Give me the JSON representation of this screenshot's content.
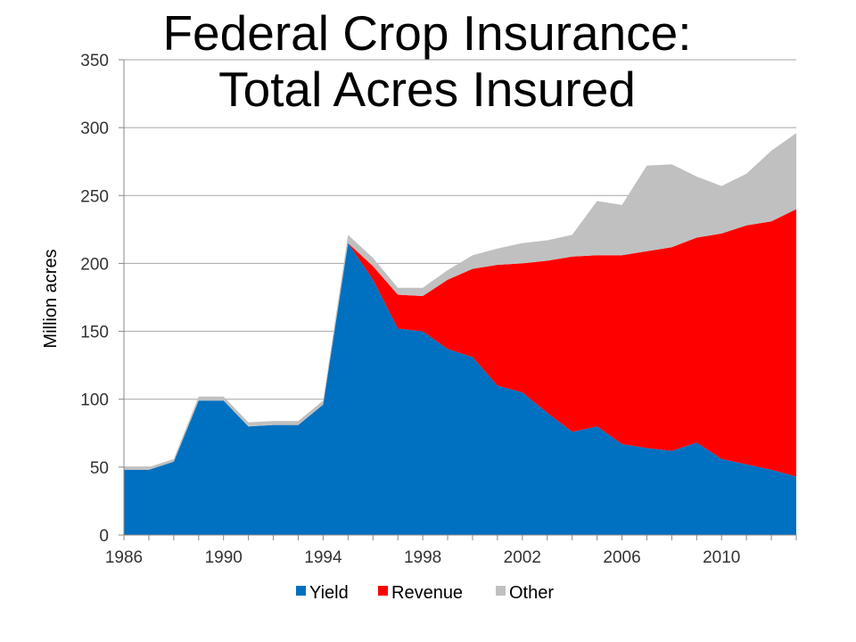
{
  "chart_data": {
    "type": "area",
    "stacked": true,
    "title": "Federal Crop Insurance:",
    "subtitle": "Total Acres Insured",
    "ylabel": "Million acres",
    "xlabel": "",
    "ylim": [
      0,
      350
    ],
    "yticks": [
      0,
      50,
      100,
      150,
      200,
      250,
      300,
      350
    ],
    "xlim": [
      1986,
      2013
    ],
    "xticks": [
      1986,
      1990,
      1994,
      1998,
      2002,
      2006,
      2010
    ],
    "grid": true,
    "legend_position": "bottom",
    "x": [
      1986,
      1987,
      1988,
      1989,
      1990,
      1991,
      1992,
      1993,
      1994,
      1995,
      1996,
      1997,
      1998,
      1999,
      2000,
      2001,
      2002,
      2003,
      2004,
      2005,
      2006,
      2007,
      2008,
      2009,
      2010,
      2011,
      2012,
      2013
    ],
    "series": [
      {
        "name": "Yield",
        "color": "#0070c0",
        "values": [
          48,
          48,
          54,
          99,
          99,
          80,
          81,
          81,
          96,
          215,
          188,
          152,
          150,
          137,
          131,
          110,
          105,
          90,
          76,
          80,
          67,
          64,
          62,
          68,
          56,
          52,
          48,
          43
        ]
      },
      {
        "name": "Revenue",
        "color": "#ff0000",
        "values": [
          0,
          0,
          0,
          0,
          0,
          0,
          0,
          0,
          0,
          0,
          10,
          25,
          26,
          51,
          65,
          89,
          95,
          112,
          129,
          126,
          139,
          145,
          150,
          151,
          166,
          176,
          183,
          197
        ]
      },
      {
        "name": "Other",
        "color": "#c0c0c0",
        "values": [
          2,
          2,
          2,
          3,
          3,
          3,
          3,
          3,
          3,
          6,
          6,
          5,
          6,
          7,
          10,
          12,
          15,
          15,
          16,
          40,
          37,
          63,
          61,
          45,
          35,
          38,
          52,
          56
        ]
      }
    ]
  }
}
